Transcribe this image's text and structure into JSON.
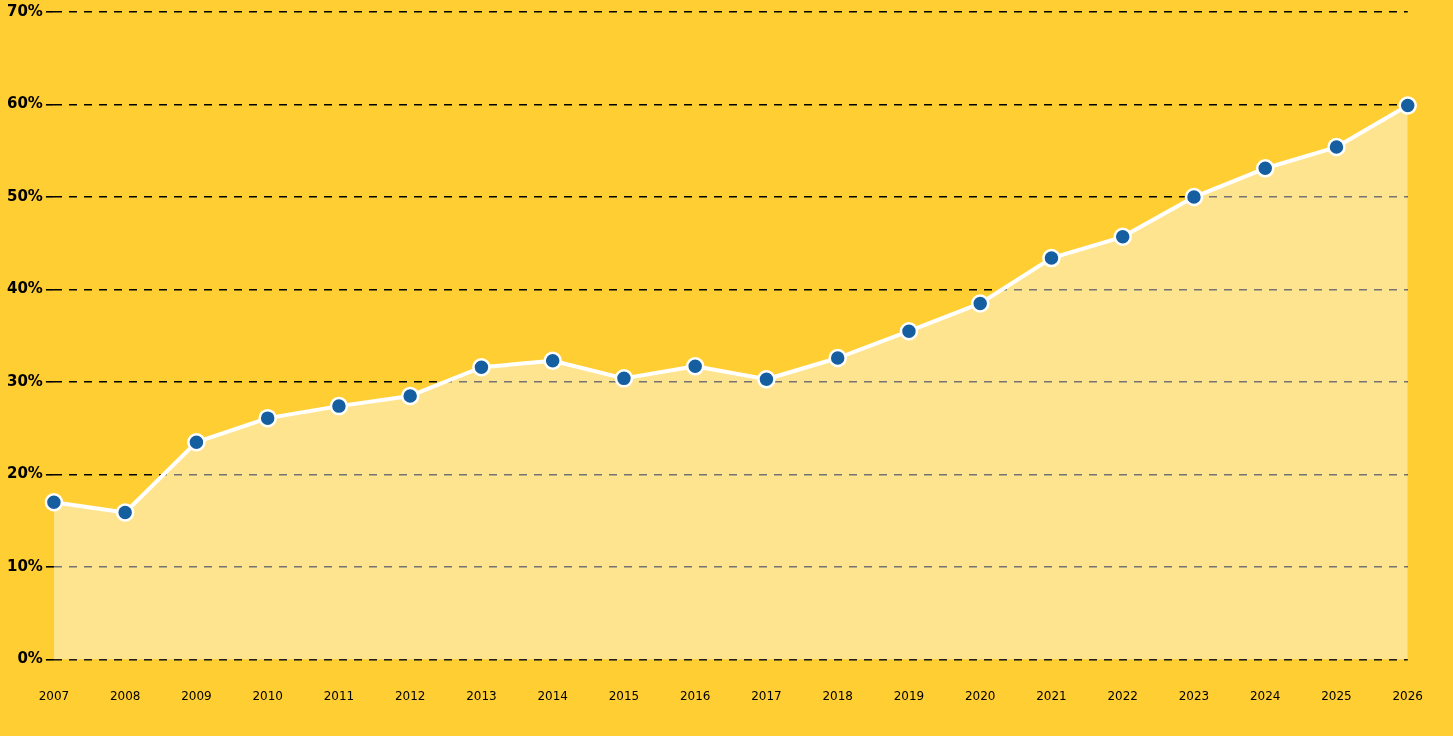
{
  "chart_data": {
    "type": "area",
    "categories": [
      "2007",
      "2008",
      "2009",
      "2010",
      "2011",
      "2012",
      "2013",
      "2014",
      "2015",
      "2016",
      "2017",
      "2018",
      "2019",
      "2020",
      "2021",
      "2022",
      "2023",
      "2024",
      "2025",
      "2026"
    ],
    "series": [
      {
        "color": "#ffffff",
        "colors": [
          "#155fa0",
          "#155fa0",
          "#155fa0",
          "#155fa0",
          "#155fa0",
          "#155fa0",
          "#155fa0",
          "#155fa0",
          "#155fa0",
          "#155fa0",
          "#155fa0",
          "#155fa0",
          "#155fa0",
          "#155fa0",
          "#155fa0",
          "#155fa0",
          "#155fa0",
          "#155fa0",
          "#155fa0",
          "#155fa0"
        ],
        "values": [
          17.0,
          15.9,
          23.5,
          26.1,
          27.4,
          28.5,
          31.6,
          32.3,
          30.4,
          31.7,
          30.3,
          32.6,
          35.5,
          38.5,
          43.4,
          45.7,
          50.0,
          53.1,
          55.4,
          59.9
        ]
      }
    ],
    "ylim": [
      0,
      70
    ],
    "yticks": [
      {
        "value": 0,
        "label": "0%"
      },
      {
        "value": 10,
        "label": "10%"
      },
      {
        "value": 20,
        "label": "20%"
      },
      {
        "value": 30,
        "label": "30%"
      },
      {
        "value": 40,
        "label": "40%"
      },
      {
        "value": 50,
        "label": "50%"
      },
      {
        "value": 60,
        "label": "60%"
      },
      {
        "value": 70,
        "label": "70%"
      }
    ],
    "grid": "y",
    "marker": "circle",
    "legend": false
  }
}
